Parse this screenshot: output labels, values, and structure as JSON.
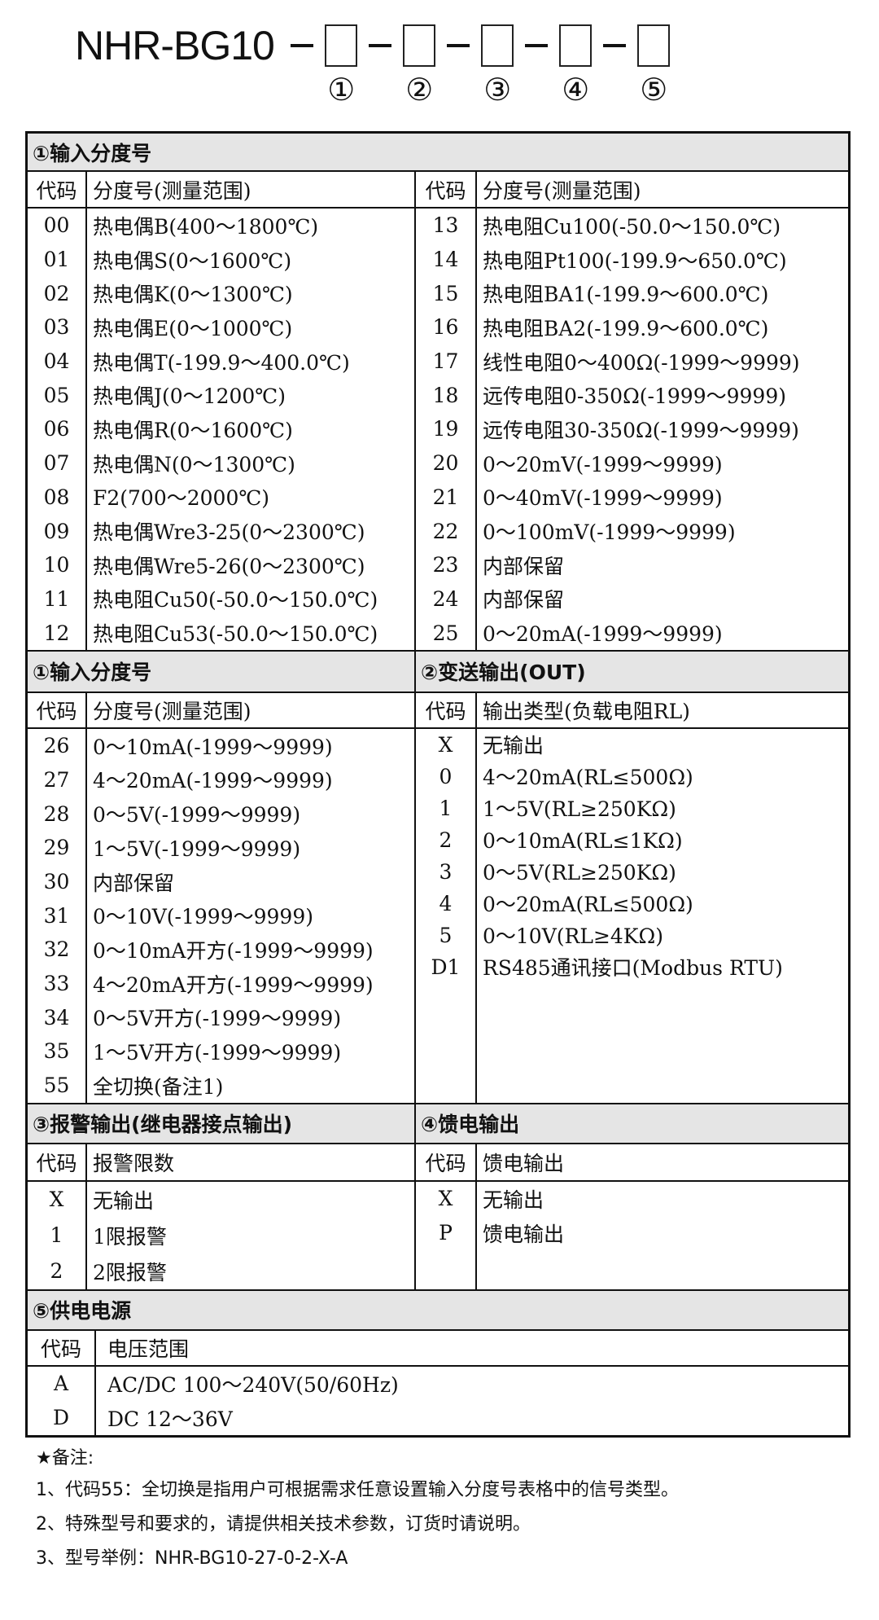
{
  "title": {
    "model": "NHR-BG10",
    "slots": [
      "①",
      "②",
      "③",
      "④",
      "⑤"
    ]
  },
  "s1": {
    "title": "①输入分度号",
    "col_code": "代码",
    "col_desc": "分度号(测量范围)",
    "left": [
      [
        "00",
        "热电偶B(400～1800℃)"
      ],
      [
        "01",
        "热电偶S(0～1600℃)"
      ],
      [
        "02",
        "热电偶K(0～1300℃)"
      ],
      [
        "03",
        "热电偶E(0～1000℃)"
      ],
      [
        "04",
        "热电偶T(-199.9～400.0℃)"
      ],
      [
        "05",
        "热电偶J(0～1200℃)"
      ],
      [
        "06",
        "热电偶R(0～1600℃)"
      ],
      [
        "07",
        "热电偶N(0～1300℃)"
      ],
      [
        "08",
        "F2(700～2000℃)"
      ],
      [
        "09",
        "热电偶Wre3-25(0～2300℃)"
      ],
      [
        "10",
        "热电偶Wre5-26(0～2300℃)"
      ],
      [
        "11",
        "热电阻Cu50(-50.0～150.0℃)"
      ],
      [
        "12",
        "热电阻Cu53(-50.0～150.0℃)"
      ]
    ],
    "right": [
      [
        "13",
        "热电阻Cu100(-50.0～150.0℃)"
      ],
      [
        "14",
        "热电阻Pt100(-199.9～650.0℃)"
      ],
      [
        "15",
        "热电阻BA1(-199.9～600.0℃)"
      ],
      [
        "16",
        "热电阻BA2(-199.9～600.0℃)"
      ],
      [
        "17",
        "线性电阻0～400Ω(-1999～9999)"
      ],
      [
        "18",
        "远传电阻0-350Ω(-1999～9999)"
      ],
      [
        "19",
        "远传电阻30-350Ω(-1999～9999)"
      ],
      [
        "20",
        "0～20mV(-1999～9999)"
      ],
      [
        "21",
        "0～40mV(-1999～9999)"
      ],
      [
        "22",
        "0～100mV(-1999～9999)"
      ],
      [
        "23",
        "内部保留"
      ],
      [
        "24",
        "内部保留"
      ],
      [
        "25",
        "0～20mA(-1999～9999)"
      ]
    ]
  },
  "s2": {
    "left_title": "①输入分度号",
    "left_col_code": "代码",
    "left_col_desc": "分度号(测量范围)",
    "left": [
      [
        "26",
        "0～10mA(-1999～9999)"
      ],
      [
        "27",
        "4～20mA(-1999～9999)"
      ],
      [
        "28",
        "0～5V(-1999～9999)"
      ],
      [
        "29",
        "1～5V(-1999～9999)"
      ],
      [
        "30",
        "内部保留"
      ],
      [
        "31",
        "0～10V(-1999～9999)"
      ],
      [
        "32",
        "0～10mA开方(-1999～9999)"
      ],
      [
        "33",
        "4～20mA开方(-1999～9999)"
      ],
      [
        "34",
        "0～5V开方(-1999～9999)"
      ],
      [
        "35",
        "1～5V开方(-1999～9999)"
      ],
      [
        "55",
        "全切换(备注1)"
      ]
    ],
    "right_title": "②变送输出(OUT)",
    "right_col_code": "代码",
    "right_col_desc": "输出类型(负载电阻RL)",
    "right": [
      [
        "X",
        "无输出"
      ],
      [
        "0",
        "4～20mA(RL≤500Ω)"
      ],
      [
        "1",
        "1～5V(RL≥250KΩ)"
      ],
      [
        "2",
        "0～10mA(RL≤1KΩ)"
      ],
      [
        "3",
        "0～5V(RL≥250KΩ)"
      ],
      [
        "4",
        "0～20mA(RL≤500Ω)"
      ],
      [
        "5",
        "0～10V(RL≥4KΩ)"
      ],
      [
        "D1",
        "RS485通讯接口(Modbus RTU)"
      ]
    ]
  },
  "s3": {
    "left_title": "③报警输出(继电器接点输出)",
    "left_col_code": "代码",
    "left_col_desc": "报警限数",
    "left": [
      [
        "X",
        "无输出"
      ],
      [
        "1",
        "1限报警"
      ],
      [
        "2",
        "2限报警"
      ]
    ],
    "right_title": "④馈电输出",
    "right_col_code": "代码",
    "right_col_desc": "馈电输出",
    "right": [
      [
        "X",
        "无输出"
      ],
      [
        "P",
        "馈电输出"
      ]
    ]
  },
  "s5": {
    "title": "⑤供电电源",
    "col_code": "代码",
    "col_desc": "电压范围",
    "rows": [
      [
        "A",
        "AC/DC 100～240V(50/60Hz)"
      ],
      [
        "D",
        "DC 12～36V"
      ]
    ]
  },
  "notes": {
    "title": "★备注:",
    "items": [
      "1、代码55：全切换是指用户可根据需求任意设置输入分度号表格中的信号类型。",
      "2、特殊型号和要求的，请提供相关技术参数，订货时请说明。",
      "3、型号举例：NHR-BG10-27-0-2-X-A"
    ]
  }
}
